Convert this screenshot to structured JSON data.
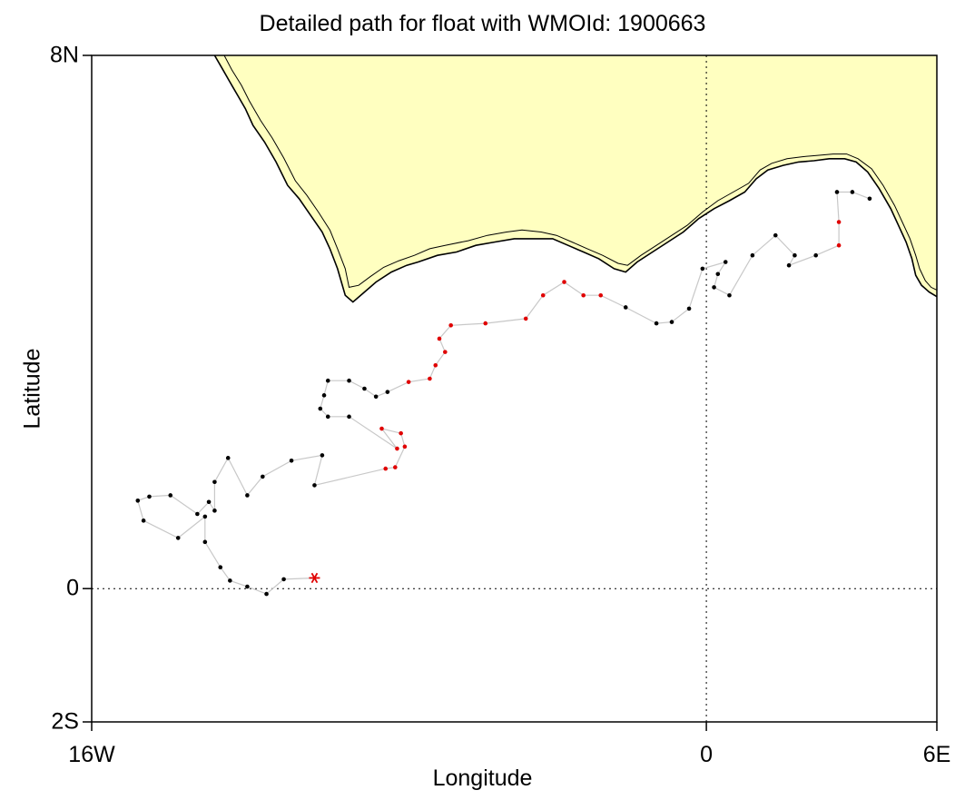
{
  "chart_data": {
    "type": "map-track",
    "title": "Detailed path for float with WMOId: 1900663",
    "xlabel": "Longitude",
    "ylabel": "Latitude",
    "xlim": [
      -16,
      6
    ],
    "ylim": [
      -2,
      8
    ],
    "xticks": [
      {
        "value": -16,
        "label": "16W"
      },
      {
        "value": 0,
        "label": "0"
      },
      {
        "value": 6,
        "label": "6E"
      }
    ],
    "yticks": [
      {
        "value": 8,
        "label": "8N"
      },
      {
        "value": 0,
        "label": "0"
      },
      {
        "value": -2,
        "label": "2S"
      }
    ],
    "reference_lines": {
      "equator_lat": 0,
      "prime_meridian_lon": 0,
      "style": "dotted"
    },
    "colors": {
      "land": "#ffffc0",
      "coast": "#000000",
      "track": "#c8c8c8",
      "point_default": "#000000",
      "point_highlight": "#e00000",
      "deploy_marker": "#e00000"
    },
    "coastline": [
      [
        -12.8,
        8.0
      ],
      [
        -12.6,
        7.8
      ],
      [
        -12.4,
        7.6
      ],
      [
        -12.2,
        7.4
      ],
      [
        -12.0,
        7.2
      ],
      [
        -11.8,
        6.95
      ],
      [
        -11.5,
        6.7
      ],
      [
        -11.2,
        6.4
      ],
      [
        -10.9,
        6.05
      ],
      [
        -10.6,
        5.85
      ],
      [
        -10.3,
        5.6
      ],
      [
        -10.0,
        5.35
      ],
      [
        -9.8,
        5.1
      ],
      [
        -9.6,
        4.8
      ],
      [
        -9.4,
        4.4
      ],
      [
        -9.2,
        4.3
      ],
      [
        -8.9,
        4.45
      ],
      [
        -8.6,
        4.6
      ],
      [
        -8.2,
        4.75
      ],
      [
        -7.8,
        4.85
      ],
      [
        -7.5,
        4.9
      ],
      [
        -7.0,
        5.0
      ],
      [
        -6.5,
        5.05
      ],
      [
        -6.0,
        5.15
      ],
      [
        -5.5,
        5.2
      ],
      [
        -5.0,
        5.25
      ],
      [
        -4.5,
        5.25
      ],
      [
        -4.0,
        5.25
      ],
      [
        -3.6,
        5.15
      ],
      [
        -3.2,
        5.05
      ],
      [
        -2.8,
        4.95
      ],
      [
        -2.4,
        4.8
      ],
      [
        -2.1,
        4.75
      ],
      [
        -1.8,
        4.9
      ],
      [
        -1.4,
        5.05
      ],
      [
        -1.0,
        5.2
      ],
      [
        -0.6,
        5.35
      ],
      [
        -0.2,
        5.55
      ],
      [
        0.2,
        5.7
      ],
      [
        0.6,
        5.82
      ],
      [
        1.0,
        5.95
      ],
      [
        1.3,
        6.15
      ],
      [
        1.6,
        6.28
      ],
      [
        2.0,
        6.35
      ],
      [
        2.4,
        6.4
      ],
      [
        2.8,
        6.42
      ],
      [
        3.2,
        6.45
      ],
      [
        3.6,
        6.45
      ],
      [
        3.9,
        6.4
      ],
      [
        4.2,
        6.25
      ],
      [
        4.5,
        6.0
      ],
      [
        4.8,
        5.7
      ],
      [
        5.0,
        5.45
      ],
      [
        5.2,
        5.2
      ],
      [
        5.35,
        4.95
      ],
      [
        5.45,
        4.7
      ],
      [
        5.6,
        4.55
      ],
      [
        5.8,
        4.45
      ],
      [
        6.0,
        4.38
      ]
    ],
    "coastline_inner": [
      [
        -12.55,
        8.0
      ],
      [
        -12.35,
        7.78
      ],
      [
        -12.1,
        7.55
      ],
      [
        -11.9,
        7.32
      ],
      [
        -11.6,
        7.02
      ],
      [
        -11.3,
        6.76
      ],
      [
        -11.0,
        6.46
      ],
      [
        -10.7,
        6.12
      ],
      [
        -10.4,
        5.9
      ],
      [
        -10.1,
        5.65
      ],
      [
        -9.8,
        5.38
      ],
      [
        -9.6,
        5.1
      ],
      [
        -9.4,
        4.8
      ],
      [
        -9.3,
        4.52
      ],
      [
        -9.05,
        4.55
      ],
      [
        -8.75,
        4.68
      ],
      [
        -8.4,
        4.82
      ],
      [
        -8.0,
        4.92
      ],
      [
        -7.6,
        5.0
      ],
      [
        -7.2,
        5.1
      ],
      [
        -6.8,
        5.15
      ],
      [
        -6.2,
        5.22
      ],
      [
        -5.7,
        5.3
      ],
      [
        -5.2,
        5.35
      ],
      [
        -4.8,
        5.38
      ],
      [
        -4.3,
        5.35
      ],
      [
        -3.9,
        5.3
      ],
      [
        -3.5,
        5.2
      ],
      [
        -3.1,
        5.1
      ],
      [
        -2.7,
        5.0
      ],
      [
        -2.3,
        4.88
      ],
      [
        -2.05,
        4.85
      ],
      [
        -1.7,
        5.0
      ],
      [
        -1.3,
        5.15
      ],
      [
        -0.9,
        5.3
      ],
      [
        -0.5,
        5.45
      ],
      [
        -0.1,
        5.65
      ],
      [
        0.3,
        5.82
      ],
      [
        0.7,
        5.95
      ],
      [
        1.1,
        6.08
      ],
      [
        1.4,
        6.28
      ],
      [
        1.7,
        6.38
      ],
      [
        2.1,
        6.45
      ],
      [
        2.5,
        6.48
      ],
      [
        2.9,
        6.5
      ],
      [
        3.3,
        6.52
      ],
      [
        3.65,
        6.52
      ],
      [
        3.95,
        6.45
      ],
      [
        4.3,
        6.3
      ],
      [
        4.6,
        6.05
      ],
      [
        4.9,
        5.75
      ],
      [
        5.1,
        5.5
      ],
      [
        5.3,
        5.25
      ],
      [
        5.45,
        5.0
      ],
      [
        5.55,
        4.8
      ],
      [
        5.7,
        4.62
      ],
      [
        5.85,
        4.52
      ],
      [
        6.0,
        4.48
      ]
    ],
    "track": [
      {
        "lon": -10.2,
        "lat": 0.16,
        "highlight": true
      },
      {
        "lon": -11.0,
        "lat": 0.14
      },
      {
        "lon": -11.45,
        "lat": -0.08
      },
      {
        "lon": -11.95,
        "lat": 0.03
      },
      {
        "lon": -12.4,
        "lat": 0.12
      },
      {
        "lon": -12.65,
        "lat": 0.32
      },
      {
        "lon": -13.05,
        "lat": 0.7
      },
      {
        "lon": -13.05,
        "lat": 1.08
      },
      {
        "lon": -13.75,
        "lat": 0.76
      },
      {
        "lon": -14.65,
        "lat": 1.02
      },
      {
        "lon": -14.8,
        "lat": 1.32
      },
      {
        "lon": -14.5,
        "lat": 1.38
      },
      {
        "lon": -13.95,
        "lat": 1.4
      },
      {
        "lon": -13.25,
        "lat": 1.12
      },
      {
        "lon": -12.95,
        "lat": 1.3
      },
      {
        "lon": -12.8,
        "lat": 1.17
      },
      {
        "lon": -12.8,
        "lat": 1.6
      },
      {
        "lon": -12.45,
        "lat": 1.96
      },
      {
        "lon": -11.95,
        "lat": 1.4
      },
      {
        "lon": -11.55,
        "lat": 1.68
      },
      {
        "lon": -10.8,
        "lat": 1.92
      },
      {
        "lon": -10.0,
        "lat": 2.0
      },
      {
        "lon": -10.2,
        "lat": 1.55
      },
      {
        "lon": -8.35,
        "lat": 1.8,
        "highlight": true
      },
      {
        "lon": -8.1,
        "lat": 1.82,
        "highlight": true
      },
      {
        "lon": -7.85,
        "lat": 2.13,
        "highlight": true
      },
      {
        "lon": -7.95,
        "lat": 2.33,
        "highlight": true
      },
      {
        "lon": -8.45,
        "lat": 2.4,
        "highlight": true
      },
      {
        "lon": -8.05,
        "lat": 2.1,
        "highlight": true
      },
      {
        "lon": -9.3,
        "lat": 2.58
      },
      {
        "lon": -9.85,
        "lat": 2.58
      },
      {
        "lon": -10.05,
        "lat": 2.7
      },
      {
        "lon": -9.95,
        "lat": 2.9
      },
      {
        "lon": -9.85,
        "lat": 3.12
      },
      {
        "lon": -9.3,
        "lat": 3.12
      },
      {
        "lon": -8.9,
        "lat": 3.0
      },
      {
        "lon": -8.6,
        "lat": 2.88
      },
      {
        "lon": -8.3,
        "lat": 2.95
      },
      {
        "lon": -7.75,
        "lat": 3.1,
        "highlight": true
      },
      {
        "lon": -7.2,
        "lat": 3.15,
        "highlight": true
      },
      {
        "lon": -7.05,
        "lat": 3.35,
        "highlight": true
      },
      {
        "lon": -6.8,
        "lat": 3.55,
        "highlight": true
      },
      {
        "lon": -6.95,
        "lat": 3.75,
        "highlight": true
      },
      {
        "lon": -6.65,
        "lat": 3.95,
        "highlight": true
      },
      {
        "lon": -5.75,
        "lat": 3.98,
        "highlight": true
      },
      {
        "lon": -4.7,
        "lat": 4.05,
        "highlight": true
      },
      {
        "lon": -4.25,
        "lat": 4.4,
        "highlight": true
      },
      {
        "lon": -3.7,
        "lat": 4.6,
        "highlight": true
      },
      {
        "lon": -3.2,
        "lat": 4.4,
        "highlight": true
      },
      {
        "lon": -2.75,
        "lat": 4.4,
        "highlight": true
      },
      {
        "lon": -2.1,
        "lat": 4.22
      },
      {
        "lon": -1.3,
        "lat": 3.98
      },
      {
        "lon": -0.9,
        "lat": 4.0
      },
      {
        "lon": -0.45,
        "lat": 4.2
      },
      {
        "lon": -0.1,
        "lat": 4.8
      },
      {
        "lon": 0.5,
        "lat": 4.9
      },
      {
        "lon": 0.3,
        "lat": 4.72
      },
      {
        "lon": 0.2,
        "lat": 4.52
      },
      {
        "lon": 0.6,
        "lat": 4.4
      },
      {
        "lon": 1.2,
        "lat": 5.0
      },
      {
        "lon": 1.8,
        "lat": 5.3
      },
      {
        "lon": 2.3,
        "lat": 5.0
      },
      {
        "lon": 2.15,
        "lat": 4.85
      },
      {
        "lon": 2.85,
        "lat": 5.0
      },
      {
        "lon": 3.45,
        "lat": 5.15,
        "highlight": true
      },
      {
        "lon": 3.45,
        "lat": 5.5,
        "highlight": true
      },
      {
        "lon": 3.4,
        "lat": 5.95
      },
      {
        "lon": 3.8,
        "lat": 5.95
      },
      {
        "lon": 4.25,
        "lat": 5.85
      }
    ]
  }
}
